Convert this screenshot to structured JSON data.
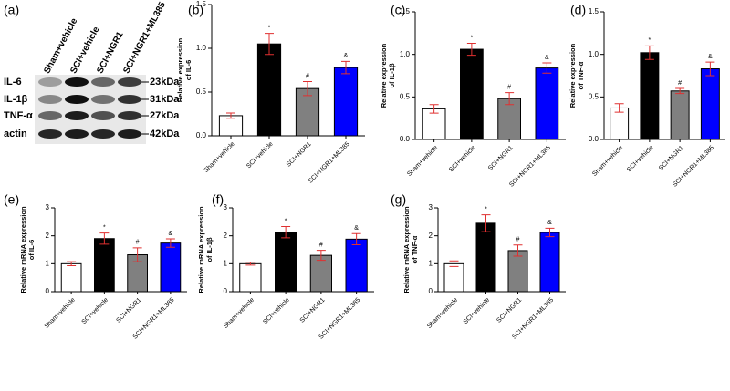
{
  "blot": {
    "label": "(a)",
    "lanes": [
      "Sham+vehicle",
      "SCI+vehicle",
      "SCI+NGR1",
      "SCI+NGR1+ML385"
    ],
    "rows": [
      {
        "name": "IL-6",
        "size": "23kDa"
      },
      {
        "name": "IL-1β",
        "size": "31kDa"
      },
      {
        "name": "TNF-α",
        "size": "27kDa"
      },
      {
        "name": "actin",
        "size": "42kDa"
      }
    ]
  },
  "chart_data": [
    {
      "type": "bar",
      "label": "(b)",
      "ylabel": [
        "Relative expression",
        "of IL-6"
      ],
      "categories": [
        "Sham+vehicle",
        "SCI+vehicle",
        "SCI+NGR1",
        "SCI+NGR1+ML385"
      ],
      "values": [
        0.23,
        1.05,
        0.54,
        0.78
      ],
      "errors": [
        0.03,
        0.12,
        0.08,
        0.07
      ],
      "annotations": [
        null,
        "*",
        "#",
        "&"
      ],
      "colors": [
        "#ffffff",
        "#000000",
        "#808080",
        "#0000ff"
      ],
      "error_color": "#e03030",
      "ylim": [
        0,
        1.5
      ],
      "yticks": [
        {
          "value": 0,
          "label": "0.0"
        },
        0.5,
        {
          "value": 1,
          "label": "1.0"
        },
        1.5
      ]
    },
    {
      "type": "bar",
      "label": "(c)",
      "ylabel": [
        "Relative expression",
        "of IL-1β"
      ],
      "categories": [
        "Sham+vehicle",
        "SCI+vehicle",
        "SCI+NGR1",
        "SCI+NGR1+ML385"
      ],
      "values": [
        0.36,
        1.06,
        0.48,
        0.84
      ],
      "errors": [
        0.05,
        0.07,
        0.07,
        0.06
      ],
      "annotations": [
        null,
        "*",
        "#",
        "&"
      ],
      "colors": [
        "#ffffff",
        "#000000",
        "#808080",
        "#0000ff"
      ],
      "error_color": "#e03030",
      "ylim": [
        0,
        1.5
      ],
      "yticks": [
        {
          "value": 0,
          "label": "0.0"
        },
        0.5,
        {
          "value": 1,
          "label": "1.0"
        },
        1.5
      ]
    },
    {
      "type": "bar",
      "label": "(d)",
      "ylabel": [
        "Relative expression",
        "of TNF-α"
      ],
      "categories": [
        "Sham+vehicle",
        "SCI+vehicle",
        "SCI+NGR1",
        "SCI+NGR1+ML385"
      ],
      "values": [
        0.37,
        1.02,
        0.57,
        0.83
      ],
      "errors": [
        0.05,
        0.08,
        0.03,
        0.08
      ],
      "annotations": [
        null,
        "*",
        "#",
        "&"
      ],
      "colors": [
        "#ffffff",
        "#000000",
        "#808080",
        "#0000ff"
      ],
      "error_color": "#e03030",
      "ylim": [
        0,
        1.5
      ],
      "yticks": [
        {
          "value": 0,
          "label": "0.0"
        },
        0.5,
        {
          "value": 1,
          "label": "1.0"
        },
        1.5
      ]
    },
    {
      "type": "bar",
      "label": "(e)",
      "ylabel": [
        "Relative mRNA expression",
        "of IL-6"
      ],
      "categories": [
        "Sham+vehicle",
        "SCI+vehicle",
        "SCI+NGR1",
        "SCI+NGR1+ML385"
      ],
      "values": [
        1.0,
        1.9,
        1.32,
        1.74
      ],
      "errors": [
        0.07,
        0.2,
        0.25,
        0.15
      ],
      "annotations": [
        null,
        "*",
        "#",
        "&"
      ],
      "colors": [
        "#ffffff",
        "#000000",
        "#808080",
        "#0000ff"
      ],
      "error_color": "#e03030",
      "ylim": [
        0,
        3
      ],
      "yticks": [
        0,
        1,
        2,
        3
      ]
    },
    {
      "type": "bar",
      "label": "(f)",
      "ylabel": [
        "Relative mRNA expression",
        "of IL-1β"
      ],
      "categories": [
        "Sham+vehicle",
        "SCI+vehicle",
        "SCI+NGR1",
        "SCI+NGR1+ML385"
      ],
      "values": [
        1.0,
        2.13,
        1.3,
        1.88
      ],
      "errors": [
        0.05,
        0.2,
        0.18,
        0.2
      ],
      "annotations": [
        null,
        "*",
        "#",
        "&"
      ],
      "colors": [
        "#ffffff",
        "#000000",
        "#808080",
        "#0000ff"
      ],
      "error_color": "#e03030",
      "ylim": [
        0,
        3
      ],
      "yticks": [
        0,
        1,
        2,
        3
      ]
    },
    {
      "type": "bar",
      "label": "(g)",
      "ylabel": [
        "Relative mRNA expression",
        "of TNF-α"
      ],
      "categories": [
        "Sham+vehicle",
        "SCI+vehicle",
        "SCI+NGR1",
        "SCI+NGR1+ML385"
      ],
      "values": [
        1.0,
        2.45,
        1.47,
        2.12
      ],
      "errors": [
        0.1,
        0.3,
        0.2,
        0.15
      ],
      "annotations": [
        null,
        "*",
        "#",
        "&"
      ],
      "colors": [
        "#ffffff",
        "#000000",
        "#808080",
        "#0000ff"
      ],
      "error_color": "#e03030",
      "ylim": [
        0,
        3
      ],
      "yticks": [
        0,
        1,
        2,
        3
      ]
    }
  ]
}
